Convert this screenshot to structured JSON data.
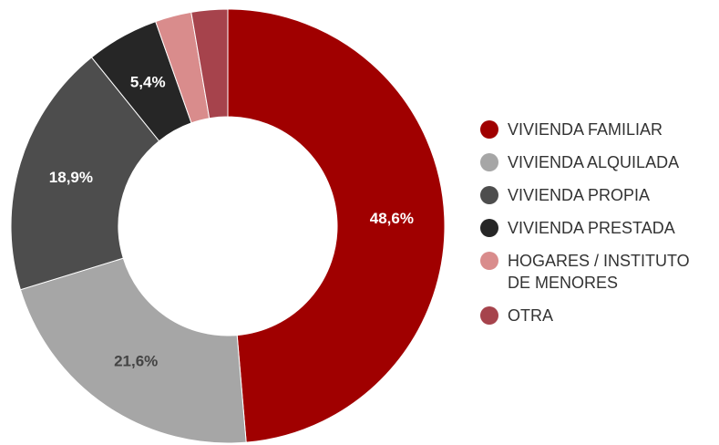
{
  "chart_data": {
    "type": "donut",
    "categories": [
      "VIVIENDA FAMILIAR",
      "VIVIENDA ALQUILADA",
      "VIVIENDA PROPIA",
      "VIVIENDA PRESTADA",
      "HOGARES / INSTITUTO DE MENORES",
      "OTRA"
    ],
    "values": [
      48.6,
      21.6,
      18.9,
      5.4,
      2.7,
      2.7
    ],
    "value_labels": [
      "48,6%",
      "21,6%",
      "18,9%",
      "5,4%",
      null,
      null
    ],
    "colors": [
      "#a00000",
      "#a6a6a6",
      "#4d4d4d",
      "#262626",
      "#d98c8c",
      "#a6434c"
    ],
    "legend": "right"
  }
}
